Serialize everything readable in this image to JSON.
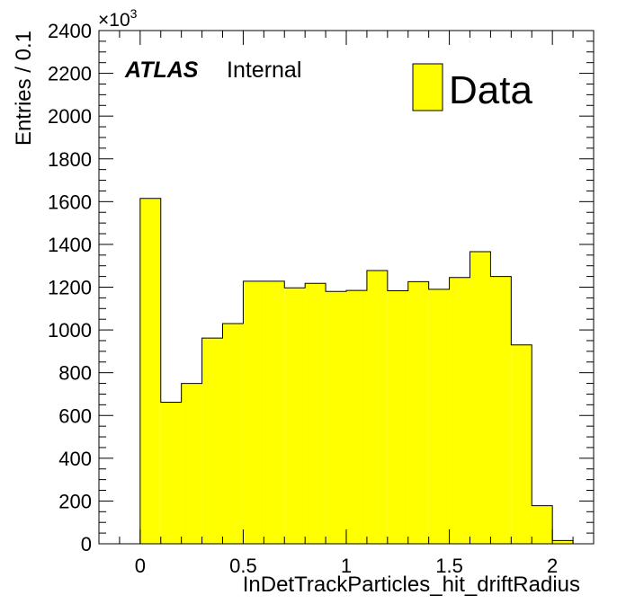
{
  "chart_data": {
    "type": "bar",
    "subtype": "histogram",
    "xlabel": "InDetTrackParticles_hit_driftRadius",
    "ylabel": "Entries / 0.1",
    "y_multiplier": "×10",
    "y_multiplier_exp": "3",
    "xlim": [
      -0.2,
      2.2
    ],
    "ylim": [
      0,
      2400
    ],
    "x_ticks": [
      0,
      0.5,
      1,
      1.5,
      2
    ],
    "x_tick_labels": [
      "0",
      "0.5",
      "1",
      "1.5",
      "2"
    ],
    "y_ticks": [
      0,
      200,
      400,
      600,
      800,
      1000,
      1200,
      1400,
      1600,
      1800,
      2000,
      2200,
      2400
    ],
    "y_tick_labels": [
      "0",
      "200",
      "400",
      "600",
      "800",
      "1000",
      "1200",
      "1400",
      "1600",
      "1800",
      "2000",
      "2200",
      "2400"
    ],
    "bin_edges": [
      0.0,
      0.1,
      0.2,
      0.3,
      0.4,
      0.5,
      0.6,
      0.7,
      0.8,
      0.9,
      1.0,
      1.1,
      1.2,
      1.3,
      1.4,
      1.5,
      1.6,
      1.7,
      1.8,
      1.9,
      2.0,
      2.1
    ],
    "values": [
      1615,
      662,
      750,
      962,
      1030,
      1228,
      1228,
      1197,
      1218,
      1180,
      1185,
      1278,
      1183,
      1226,
      1190,
      1245,
      1366,
      1250,
      930,
      178,
      15
    ],
    "series": [
      {
        "name": "Data",
        "color": "#ffff00"
      }
    ],
    "legend": "top-right",
    "grid": false
  },
  "annotation": {
    "experiment": "ATLAS",
    "status": "Internal"
  }
}
